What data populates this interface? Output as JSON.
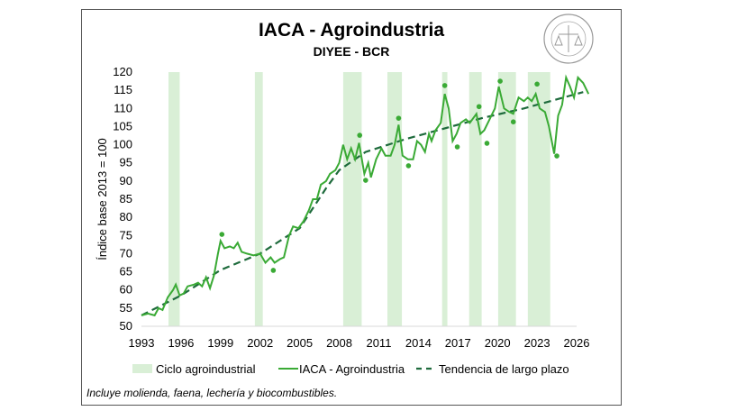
{
  "chart_data": {
    "type": "line",
    "title": "IACA - Agroindustria",
    "subtitle": "DIYEE - BCR",
    "ylabel": "Índice base 2013 = 100",
    "xlabel": "",
    "xlim": [
      1993,
      2026
    ],
    "ylim": [
      50,
      120
    ],
    "x_ticks": [
      "1993",
      "1996",
      "1999",
      "2002",
      "2005",
      "2008",
      "2011",
      "2014",
      "2017",
      "2020",
      "2023",
      "2026"
    ],
    "y_ticks": [
      "50",
      "55",
      "60",
      "65",
      "70",
      "75",
      "80",
      "85",
      "90",
      "95",
      "100",
      "105",
      "110",
      "115",
      "120"
    ],
    "grid": false,
    "legend_position": "bottom",
    "legend": [
      "Ciclo agroindustrial",
      "IACA - Agroindustria",
      "Tendencia de largo plazo"
    ],
    "note": "Incluye molienda, faena, lechería y biocombustibles.",
    "colors": {
      "band": "#d9efd6",
      "line": "#3aaa35",
      "trend": "#1e6b3c",
      "points": "#3aaa35"
    },
    "bands": [
      [
        1995.05,
        1995.9
      ],
      [
        2001.6,
        2002.2
      ],
      [
        2008.3,
        2009.7
      ],
      [
        2011.65,
        2012.75
      ],
      [
        2015.8,
        2016.2
      ],
      [
        2017.85,
        2018.8
      ],
      [
        2020.05,
        2021.4
      ],
      [
        2022.3,
        2024.0
      ]
    ],
    "series": [
      {
        "name": "IACA - Agroindustria",
        "style": "solid",
        "x": [
          1993.0,
          1993.5,
          1994.0,
          1994.3,
          1994.6,
          1995.0,
          1995.4,
          1995.6,
          1995.9,
          1996.2,
          1996.5,
          1997.0,
          1997.3,
          1997.6,
          1997.9,
          1998.2,
          1998.5,
          1998.8,
          1999.0,
          1999.3,
          1999.7,
          2000.0,
          2000.3,
          2000.6,
          2001.0,
          2001.5,
          2002.0,
          2002.4,
          2002.8,
          2003.1,
          2003.5,
          2003.8,
          2004.2,
          2004.5,
          2004.9,
          2005.3,
          2005.7,
          2006.0,
          2006.3,
          2006.6,
          2007.0,
          2007.3,
          2007.7,
          2008.0,
          2008.3,
          2008.6,
          2008.9,
          2009.2,
          2009.5,
          2009.9,
          2010.2,
          2010.4,
          2010.8,
          2011.2,
          2011.5,
          2011.9,
          2012.2,
          2012.5,
          2012.8,
          2013.2,
          2013.6,
          2013.9,
          2014.2,
          2014.5,
          2014.8,
          2015.0,
          2015.3,
          2015.7,
          2016.0,
          2016.3,
          2016.6,
          2016.9,
          2017.2,
          2017.6,
          2017.9,
          2018.4,
          2018.7,
          2019.0,
          2019.4,
          2019.8,
          2020.1,
          2020.5,
          2020.9,
          2021.2,
          2021.6,
          2022.0,
          2022.3,
          2022.6,
          2022.9,
          2023.2,
          2023.6,
          2023.9,
          2024.3,
          2024.6,
          2024.9,
          2025.2,
          2025.5,
          2025.8,
          2026.1,
          2026.5,
          2026.9
        ],
        "y": [
          53,
          53.5,
          53,
          55,
          54.5,
          58,
          60,
          61.5,
          58.5,
          59,
          61,
          61.5,
          62,
          61,
          63.5,
          60.5,
          64,
          70,
          73.5,
          71.5,
          72,
          71.5,
          73,
          70.5,
          70,
          69.5,
          70,
          67.5,
          69,
          67.5,
          68.5,
          69,
          75,
          77.5,
          77,
          79,
          82,
          85,
          85,
          89,
          90,
          92,
          93,
          95,
          100,
          96,
          99,
          96,
          100.5,
          92,
          95,
          91,
          96,
          99,
          97,
          97,
          100,
          105.5,
          97,
          96,
          96,
          101,
          100,
          98,
          103,
          101,
          104,
          106,
          114,
          110,
          101,
          103,
          106,
          107,
          106,
          108.5,
          103,
          104,
          107,
          110,
          116,
          110,
          109,
          108.5,
          113,
          112,
          113,
          112,
          114,
          110,
          109,
          105,
          97.5,
          108,
          111,
          118.5,
          116,
          113,
          118.5,
          117,
          114
        ]
      },
      {
        "name": "Tendencia de largo plazo",
        "style": "dashed",
        "x": [
          1993,
          1996,
          1999,
          2002,
          2005,
          2007,
          2008,
          2010,
          2013,
          2016,
          2019,
          2022,
          2025,
          2026.5
        ],
        "y": [
          53,
          58.5,
          65.5,
          70,
          77,
          88,
          93,
          98,
          101.5,
          104.5,
          107.5,
          110,
          113,
          114.5
        ]
      }
    ],
    "points": {
      "x": [
        1999.1,
        2003.0,
        2009.55,
        2010.0,
        2012.5,
        2013.25,
        2016.0,
        2016.95,
        2018.6,
        2019.2,
        2020.2,
        2021.2,
        2023.0,
        2024.5
      ],
      "y": [
        75.3,
        65.4,
        102.6,
        90.2,
        107.3,
        94.2,
        116.3,
        99.4,
        110.5,
        100.4,
        117.5,
        106.3,
        116.7,
        96.9
      ]
    }
  },
  "logo_text": "BOLSA DE COMERCIO DE ROSARIO"
}
